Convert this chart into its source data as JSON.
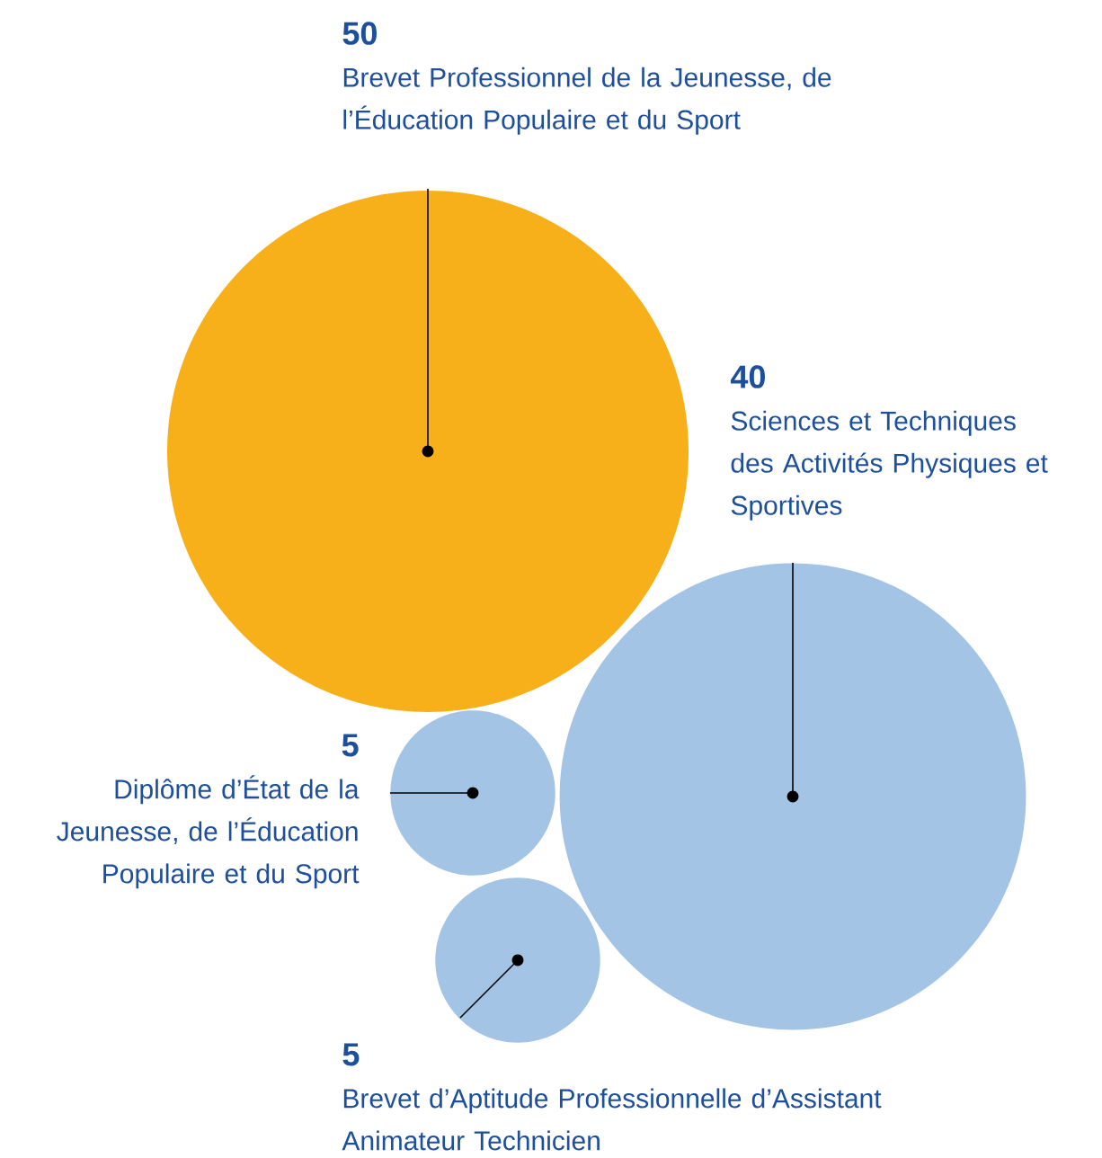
{
  "chart_data": {
    "type": "other",
    "categories": [
      "Brevet Professionnel de la Jeunesse, de l’Éducation Populaire et du Sport",
      "Sciences et Techniques des Activités Physiques et Sportives",
      "Diplôme d’État de la Jeunesse, de l’Éducation Populaire et du Sport",
      "Brevet d’Aptitude Professionnelle d’Assistant Animateur Technicien"
    ],
    "values": [
      50,
      40,
      5,
      5
    ],
    "colors": [
      "#f8b01a",
      "#a3c4e4",
      "#a3c4e4",
      "#a3c4e4"
    ],
    "data_labels": true
  }
}
